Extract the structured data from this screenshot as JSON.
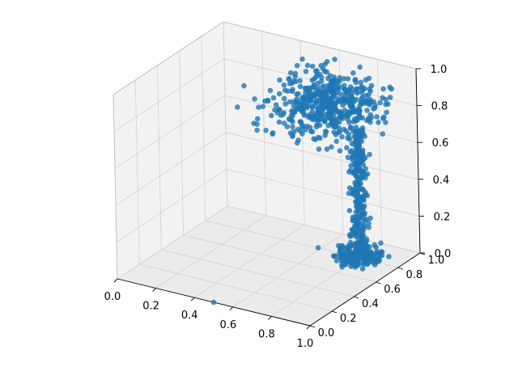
{
  "chart_data": {
    "type": "scatter",
    "title": "",
    "xlabel": "",
    "ylabel": "",
    "zlabel": "",
    "xlim": [
      0,
      1
    ],
    "ylim": [
      0,
      1
    ],
    "zlim": [
      0,
      1
    ],
    "x_ticks": [
      "0.0",
      "0.2",
      "0.4",
      "0.6",
      "0.8",
      "1.0"
    ],
    "y_ticks": [
      "0.0",
      "0.2",
      "0.4",
      "0.6",
      "0.8",
      "1.0"
    ],
    "z_ticks": [
      "0.0",
      "0.2",
      "0.4",
      "0.6",
      "0.8",
      "1.0"
    ],
    "grid": true,
    "color": "#1f77b4",
    "pane_color": "#f2f2f2",
    "outlier": {
      "x": 0.5,
      "y": 0.0,
      "z": 0.0
    },
    "clusters": [
      {
        "role": "bottom cluster",
        "center": [
          0.8,
          0.8,
          0.0
        ],
        "spread": [
          0.05,
          0.05,
          0.03
        ],
        "count": 220
      },
      {
        "role": "stem",
        "center_x": 0.8,
        "center_y": 0.8,
        "z_range": [
          0.05,
          0.7
        ],
        "spread": 0.02,
        "count": 260
      },
      {
        "role": "top cluster",
        "center": [
          0.7,
          0.7,
          0.85
        ],
        "spread": [
          0.12,
          0.12,
          0.07
        ],
        "count": 520
      }
    ]
  }
}
